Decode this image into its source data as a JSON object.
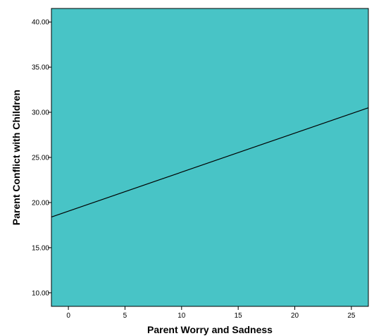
{
  "chart_data": {
    "type": "line",
    "xlabel": "Parent Worry and Sadness",
    "ylabel": "Parent Conflict with Children",
    "xlim": [
      -1.5,
      26.5
    ],
    "ylim": [
      8.5,
      41.5
    ],
    "x_ticks": [
      0,
      5,
      10,
      15,
      20,
      25
    ],
    "x_tick_labels": [
      "0",
      "5",
      "10",
      "15",
      "20",
      "25"
    ],
    "y_ticks": [
      10,
      15,
      20,
      25,
      30,
      35,
      40
    ],
    "y_tick_labels": [
      "10.00",
      "15.00",
      "20.00",
      "25.00",
      "30.00",
      "35.00",
      "40.00"
    ],
    "series": [
      {
        "x": [
          -1.5,
          26.5
        ],
        "y": [
          18.4,
          30.5
        ],
        "color": "#000000"
      }
    ],
    "grid": false,
    "plot_background": "#48c4c6"
  }
}
